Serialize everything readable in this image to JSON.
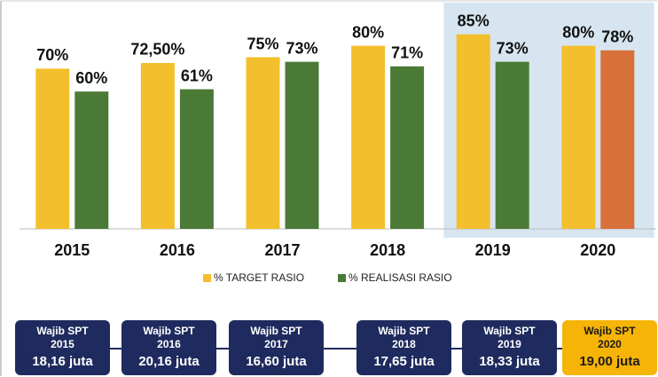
{
  "chart_data": {
    "type": "bar",
    "categories": [
      "2015",
      "2016",
      "2017",
      "2018",
      "2019",
      "2020"
    ],
    "series": [
      {
        "name": "% TARGET RASIO",
        "color": "#f3bf2c",
        "values": [
          70,
          72.5,
          75,
          80,
          85,
          80
        ],
        "value_labels": [
          "70%",
          "72,50%",
          "75%",
          "80%",
          "85%",
          "80%"
        ]
      },
      {
        "name": "% REALISASI RASIO",
        "color": "#4b7a36",
        "colors": [
          "#4b7a36",
          "#4b7a36",
          "#4b7a36",
          "#4b7a36",
          "#4b7a36",
          "#d8703a"
        ],
        "values": [
          60,
          61,
          73,
          71,
          73,
          78
        ],
        "value_labels": [
          "60%",
          "61%",
          "73%",
          "71%",
          "73%",
          "78%"
        ]
      }
    ],
    "ylim": [
      0,
      100
    ],
    "highlight": [
      4,
      5
    ],
    "highlight_color": "#d6e5f0"
  },
  "spt_boxes": [
    {
      "title": "Wajib SPT",
      "year": "2015",
      "amount": "18,16 juta"
    },
    {
      "title": "Wajib SPT",
      "year": "2016",
      "amount": "20,16 juta"
    },
    {
      "title": "Wajib SPT",
      "year": "2017",
      "amount": "16,60 juta"
    },
    {
      "title": "Wajib SPT",
      "year": "2018",
      "amount": "17,65 juta"
    },
    {
      "title": "Wajib SPT",
      "year": "2019",
      "amount": "18,33 juta"
    },
    {
      "title": "Wajib SPT",
      "year": "2020",
      "amount": "19,00 juta"
    }
  ]
}
